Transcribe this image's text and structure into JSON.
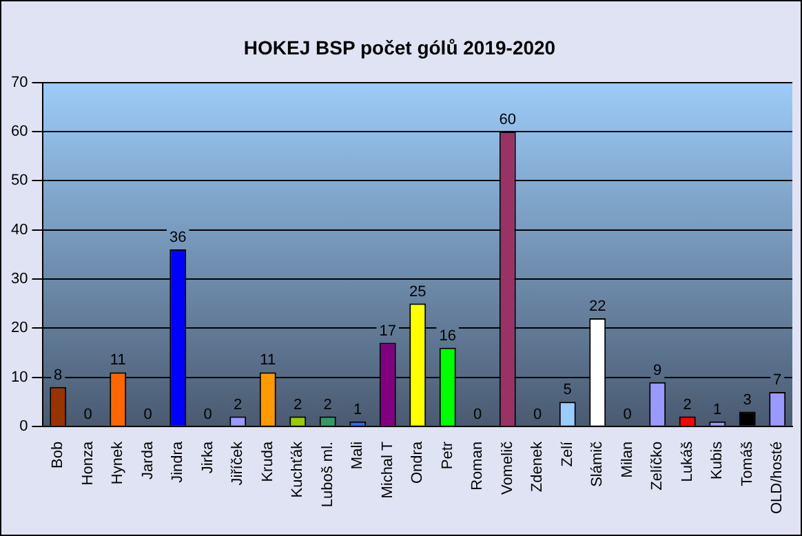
{
  "chart_data": {
    "type": "bar",
    "title": "HOKEJ BSP počet gólů 2019-2020",
    "categories": [
      "Bob",
      "Honza",
      "Hynek",
      "Jarda",
      "Jindra",
      "Jirka",
      "Jiříček",
      "Kruda",
      "Kuchťák",
      "Luboš ml.",
      "Mali",
      "Michal T",
      "Ondra",
      "Petr",
      "Roman",
      "Vomelič",
      "Zdenek",
      "Zelí",
      "Slámič",
      "Milan",
      "Zelíčko",
      "Lukáš",
      "Kubis",
      "Tomáš",
      "OLD/hosté"
    ],
    "values": [
      8,
      0,
      11,
      0,
      36,
      0,
      2,
      11,
      2,
      2,
      1,
      17,
      25,
      16,
      0,
      60,
      0,
      5,
      22,
      0,
      9,
      2,
      1,
      3,
      7
    ],
    "colors": [
      "#993300",
      "#808080",
      "#ff6600",
      "#808080",
      "#0000ff",
      "#808080",
      "#9999ff",
      "#ff9900",
      "#99cc00",
      "#339966",
      "#3366ff",
      "#800080",
      "#ffff00",
      "#00ff00",
      "#808080",
      "#993366",
      "#808080",
      "#99ccff",
      "#ffffff",
      "#808080",
      "#9999ff",
      "#ff0000",
      "#9999ff",
      "#000000",
      "#9999ff"
    ],
    "ylim": [
      0,
      70
    ],
    "yticks": [
      0,
      10,
      20,
      30,
      40,
      50,
      60,
      70
    ],
    "grid": "y",
    "data_labels": true
  }
}
